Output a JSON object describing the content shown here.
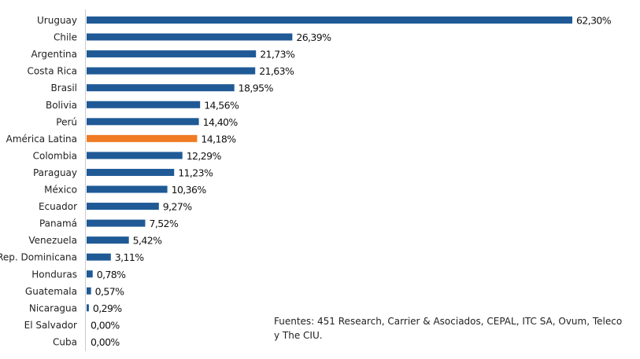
{
  "chart_data": {
    "type": "bar",
    "orientation": "horizontal",
    "categories": [
      "Uruguay",
      "Chile",
      "Argentina",
      "Costa Rica",
      "Brasil",
      "Bolivia",
      "Perú",
      "América Latina",
      "Colombia",
      "Paraguay",
      "México",
      "Ecuador",
      "Panamá",
      "Venezuela",
      "Rep. Dominicana",
      "Honduras",
      "Guatemala",
      "Nicaragua",
      "El Salvador",
      "Cuba"
    ],
    "values": [
      62.3,
      26.39,
      21.73,
      21.63,
      18.95,
      14.56,
      14.4,
      14.18,
      12.29,
      11.23,
      10.36,
      9.27,
      7.52,
      5.42,
      3.11,
      0.78,
      0.57,
      0.29,
      0.0,
      0.0
    ],
    "value_labels": [
      "62,30%",
      "26,39%",
      "21,73%",
      "21,63%",
      "18,95%",
      "14,56%",
      "14,40%",
      "14,18%",
      "12,29%",
      "11,23%",
      "10,36%",
      "9,27%",
      "7,52%",
      "5,42%",
      "3,11%",
      "0,78%",
      "0,57%",
      "0,29%",
      "0,00%",
      "0,00%"
    ],
    "highlight_category": "América Latina",
    "xlim": [
      0,
      70
    ],
    "grid": false,
    "colors": {
      "bar": "#1f5a96",
      "highlight": "#f07b22",
      "axis": "#cccccc"
    }
  },
  "source_note": "Fuentes: 451 Research,  Carrier & Asociados, CEPAL, ITC SA, Ovum, Teleco y The CIU."
}
